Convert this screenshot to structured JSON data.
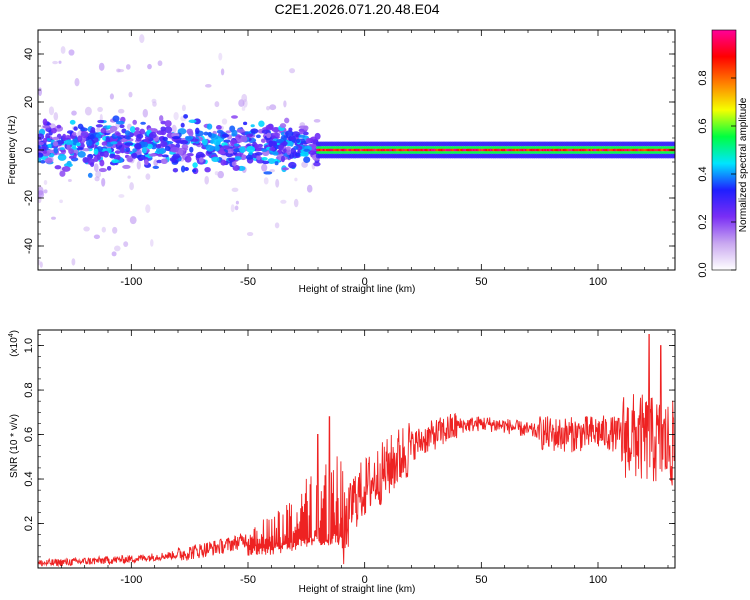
{
  "figure_title": "C2E1.2026.071.20.48.E04",
  "colors": {
    "snr_line": "#ee2222",
    "axis": "#000000",
    "spectral_core": "#ee1111",
    "spectral_mid": "#22e0d0",
    "spectral_low": "#4422dd",
    "spectral_faint": "#c9a8f0"
  },
  "chart_data": [
    {
      "type": "heatmap",
      "title": "C2E1.2026.071.20.48.E04",
      "xlabel": "Height of straight line (km)",
      "ylabel": "Frequency (Hz)",
      "xlim": [
        -140,
        133
      ],
      "ylim": [
        -50,
        50
      ],
      "x_ticks": [
        -100,
        -50,
        0,
        50,
        100
      ],
      "y_ticks": [
        -40,
        -20,
        0,
        20,
        40
      ],
      "colorbar": {
        "label": "Normalized spectral amplitude",
        "range": [
          0,
          1
        ],
        "ticks": [
          "0.0",
          "0.2",
          "0.4",
          "0.6",
          "0.8"
        ],
        "colormap": [
          "#ffffff",
          "#c9a8f0",
          "#7a2ef5",
          "#1f1fff",
          "#00e5ff",
          "#00ff40",
          "#f5ff00",
          "#ff8000",
          "#ff0000",
          "#ff0099"
        ]
      },
      "description_of_data": [
        {
          "x_range": [
            -140,
            -20
          ],
          "center_freq_hz": 2,
          "spread_hz": 8,
          "normalized_amplitude_range": [
            0.15,
            0.45
          ],
          "mean_normalized_amplitude": 0.3
        },
        {
          "x_range": [
            -20,
            133
          ],
          "center_freq_hz": 0,
          "spread_hz": 2,
          "normalized_amplitude_range": [
            0.8,
            1.0
          ],
          "mean_normalized_amplitude": 0.95
        }
      ]
    },
    {
      "type": "line",
      "xlabel": "Height of straight line (km)",
      "ylabel": "SNR (10 * v/v)",
      "y_multiplier": "(x10",
      "y_multiplier_exponent": "4",
      "xlim": [
        -140,
        133
      ],
      "ylim": [
        0,
        1.07
      ],
      "x_ticks": [
        -100,
        -50,
        0,
        50,
        100
      ],
      "y_ticks": [
        "0.2",
        "0.4",
        "0.6",
        "0.8",
        "1.0"
      ],
      "trend_points": {
        "x": [
          -140,
          -120,
          -100,
          -80,
          -70,
          -60,
          -50,
          -40,
          -30,
          -20,
          -12,
          -8,
          -5,
          0,
          10,
          20,
          30,
          40,
          50,
          60,
          70,
          80,
          90,
          100,
          110,
          120,
          133
        ],
        "y": [
          0.02,
          0.03,
          0.04,
          0.06,
          0.08,
          0.1,
          0.13,
          0.17,
          0.22,
          0.28,
          0.32,
          0.18,
          0.3,
          0.36,
          0.45,
          0.55,
          0.6,
          0.64,
          0.65,
          0.64,
          0.62,
          0.6,
          0.6,
          0.61,
          0.6,
          0.58,
          0.55
        ]
      },
      "peaks": [
        {
          "x": -20,
          "y": 0.6
        },
        {
          "x": -15,
          "y": 0.68
        },
        {
          "x": 122,
          "y": 1.05
        },
        {
          "x": 127,
          "y": 1.0
        }
      ]
    }
  ]
}
